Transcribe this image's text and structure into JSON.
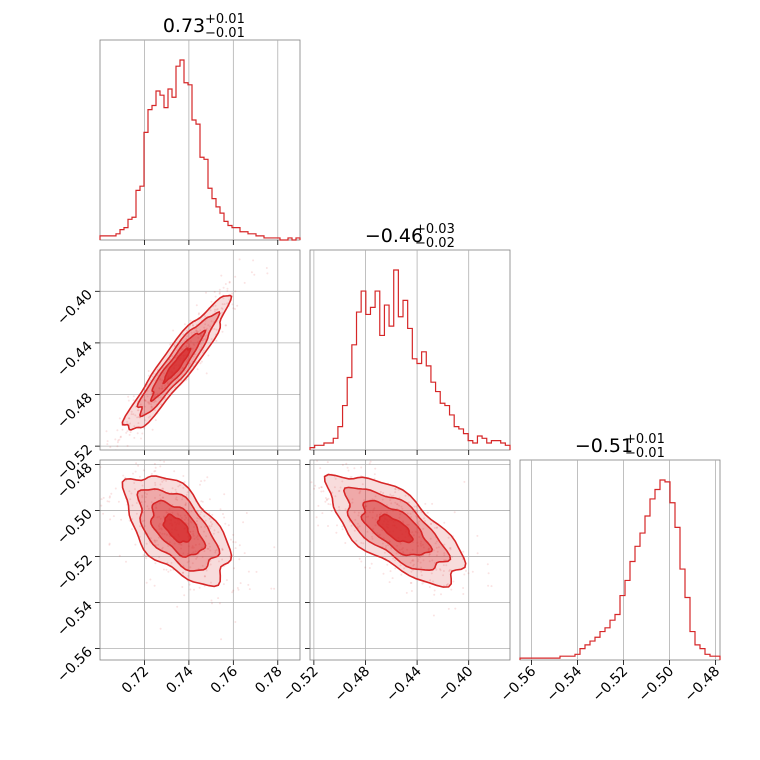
{
  "chart_data": {
    "type": "corner",
    "color": "#d62728",
    "grid": true,
    "parameters": [
      {
        "title_value": "0.73",
        "title_plus": "+0.01",
        "title_minus": "−0.01",
        "range": [
          0.7,
          0.79
        ],
        "ticks": [
          "0.72",
          "0.74",
          "0.76",
          "0.78"
        ],
        "tick_values": [
          0.72,
          0.74,
          0.76,
          0.78
        ],
        "hist": [
          2,
          2,
          2,
          2,
          3,
          5,
          6,
          10,
          11,
          24,
          26,
          52,
          63,
          65,
          72,
          70,
          64,
          73,
          69,
          84,
          87,
          76,
          75,
          58,
          56,
          40,
          39,
          25,
          20,
          16,
          13,
          9,
          7,
          6,
          6,
          4,
          4,
          3,
          3,
          2,
          2,
          1,
          1,
          1,
          1,
          0,
          0,
          1,
          0,
          1
        ]
      },
      {
        "title_value": "−0.46",
        "title_plus": "+0.03",
        "title_minus": "−0.02",
        "range": [
          -0.523,
          -0.368
        ],
        "ticks": [
          "−0.52",
          "−0.48",
          "−0.44",
          "−0.40"
        ],
        "tick_values": [
          -0.52,
          -0.48,
          -0.44,
          -0.4
        ],
        "hist": [
          1,
          2,
          2,
          3,
          3,
          5,
          10,
          19,
          31,
          45,
          59,
          68,
          58,
          61,
          68,
          49,
          62,
          53,
          77,
          57,
          64,
          52,
          39,
          37,
          42,
          36,
          29,
          25,
          20,
          19,
          15,
          10,
          9,
          7,
          4,
          3,
          6,
          5,
          3,
          4,
          4,
          3,
          2
        ]
      },
      {
        "title_value": "−0.51",
        "title_plus": "+0.01",
        "title_minus": "−0.01",
        "range": [
          -0.565,
          -0.478
        ],
        "ticks": [
          "−0.56",
          "−0.54",
          "−0.52",
          "−0.50",
          "−0.48"
        ],
        "tick_values": [
          -0.56,
          -0.54,
          -0.52,
          -0.5,
          -0.48
        ],
        "hist": [
          1,
          1,
          1,
          1,
          1,
          1,
          1,
          1,
          2,
          2,
          2,
          3,
          6,
          8,
          10,
          12,
          15,
          17,
          21,
          24,
          34,
          42,
          52,
          60,
          67,
          76,
          85,
          90,
          95,
          94,
          83,
          70,
          48,
          33,
          15,
          8,
          6,
          3,
          2,
          2
        ]
      }
    ],
    "pairs": [
      {
        "x": 0,
        "y": 1,
        "corr": 0.93
      },
      {
        "x": 0,
        "y": 2,
        "corr": -0.55
      },
      {
        "x": 1,
        "y": 2,
        "corr": -0.68
      }
    ]
  }
}
